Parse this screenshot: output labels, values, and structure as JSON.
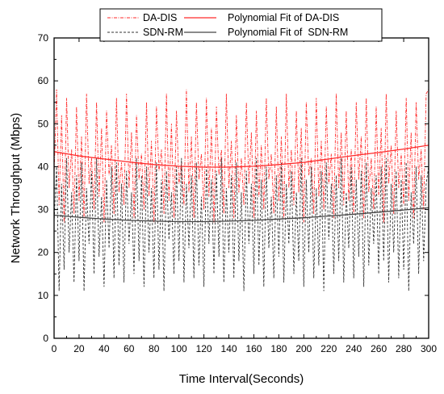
{
  "chart_data": {
    "type": "line",
    "title": "",
    "xlabel": "Time Interval(Seconds)",
    "ylabel": "Network Throughput (Mbps)",
    "xlim": [
      0,
      300
    ],
    "ylim": [
      0,
      70
    ],
    "xticks": [
      0,
      20,
      40,
      60,
      80,
      100,
      120,
      140,
      160,
      180,
      200,
      220,
      240,
      260,
      280,
      300
    ],
    "yticks": [
      0,
      10,
      20,
      30,
      40,
      50,
      60,
      70
    ],
    "grid": false,
    "legend_position": "top",
    "series": [
      {
        "name": "DA-DIS",
        "kind": "raw",
        "line_style": "dash-dot",
        "color": "#ff2a2a",
        "x": [
          0,
          2,
          4,
          6,
          8,
          10,
          12,
          14,
          16,
          18,
          20,
          22,
          24,
          26,
          28,
          30,
          32,
          34,
          36,
          38,
          40,
          42,
          44,
          46,
          48,
          50,
          52,
          54,
          56,
          58,
          60,
          62,
          64,
          66,
          68,
          70,
          72,
          74,
          76,
          78,
          80,
          82,
          84,
          86,
          88,
          90,
          92,
          94,
          96,
          98,
          100,
          102,
          104,
          106,
          108,
          110,
          112,
          114,
          116,
          118,
          120,
          122,
          124,
          126,
          128,
          130,
          132,
          134,
          136,
          138,
          140,
          142,
          144,
          146,
          148,
          150,
          152,
          154,
          156,
          158,
          160,
          162,
          164,
          166,
          168,
          170,
          172,
          174,
          176,
          178,
          180,
          182,
          184,
          186,
          188,
          190,
          192,
          194,
          196,
          198,
          200,
          202,
          204,
          206,
          208,
          210,
          212,
          214,
          216,
          218,
          220,
          222,
          224,
          226,
          228,
          230,
          232,
          234,
          236,
          238,
          240,
          242,
          244,
          246,
          248,
          250,
          252,
          254,
          256,
          258,
          260,
          262,
          264,
          266,
          268,
          270,
          272,
          274,
          276,
          278,
          280,
          282,
          284,
          286,
          288,
          290,
          292,
          294,
          296,
          298,
          300
        ],
        "y": [
          38,
          58,
          31,
          52,
          27,
          56,
          35,
          44,
          29,
          54,
          32,
          47,
          28,
          57,
          36,
          42,
          30,
          55,
          33,
          49,
          27,
          53,
          38,
          45,
          29,
          56,
          34,
          41,
          31,
          57,
          35,
          48,
          28,
          52,
          37,
          43,
          30,
          55,
          33,
          46,
          27,
          54,
          39,
          44,
          29,
          57,
          32,
          50,
          28,
          53,
          36,
          41,
          31,
          58,
          34,
          47,
          28,
          55,
          37,
          43,
          30,
          56,
          33,
          49,
          27,
          54,
          38,
          44,
          29,
          57,
          35,
          46,
          28,
          52,
          34,
          42,
          31,
          55,
          36,
          48,
          28,
          53,
          33,
          45,
          30,
          56,
          37,
          43,
          29,
          54,
          32,
          47,
          28,
          57,
          35,
          44,
          31,
          53,
          34,
          49,
          27,
          55,
          38,
          42,
          29,
          56,
          33,
          46,
          30,
          54,
          36,
          43,
          28,
          57,
          35,
          48,
          31,
          53,
          32,
          44,
          29,
          55,
          37,
          47,
          28,
          56,
          34,
          42,
          30,
          54,
          33,
          49,
          27,
          57,
          36,
          45,
          29,
          53,
          35,
          43,
          31,
          56,
          32,
          48,
          28,
          55,
          37,
          44,
          30,
          57,
          58
        ]
      },
      {
        "name": "SDN-RM",
        "kind": "raw",
        "line_style": "dash",
        "color": "#333333",
        "x": [
          0,
          2,
          4,
          6,
          8,
          10,
          12,
          14,
          16,
          18,
          20,
          22,
          24,
          26,
          28,
          30,
          32,
          34,
          36,
          38,
          40,
          42,
          44,
          46,
          48,
          50,
          52,
          54,
          56,
          58,
          60,
          62,
          64,
          66,
          68,
          70,
          72,
          74,
          76,
          78,
          80,
          82,
          84,
          86,
          88,
          90,
          92,
          94,
          96,
          98,
          100,
          102,
          104,
          106,
          108,
          110,
          112,
          114,
          116,
          118,
          120,
          122,
          124,
          126,
          128,
          130,
          132,
          134,
          136,
          138,
          140,
          142,
          144,
          146,
          148,
          150,
          152,
          154,
          156,
          158,
          160,
          162,
          164,
          166,
          168,
          170,
          172,
          174,
          176,
          178,
          180,
          182,
          184,
          186,
          188,
          190,
          192,
          194,
          196,
          198,
          200,
          202,
          204,
          206,
          208,
          210,
          212,
          214,
          216,
          218,
          220,
          222,
          224,
          226,
          228,
          230,
          232,
          234,
          236,
          238,
          240,
          242,
          244,
          246,
          248,
          250,
          252,
          254,
          256,
          258,
          260,
          262,
          264,
          266,
          268,
          270,
          272,
          274,
          276,
          278,
          280,
          282,
          284,
          286,
          288,
          290,
          292,
          294,
          296,
          298,
          300
        ],
        "y": [
          27,
          40,
          11,
          36,
          16,
          42,
          20,
          34,
          13,
          38,
          18,
          41,
          11,
          35,
          22,
          39,
          15,
          42,
          19,
          33,
          12,
          37,
          21,
          40,
          14,
          41,
          17,
          36,
          13,
          39,
          22,
          34,
          15,
          42,
          18,
          38,
          12,
          40,
          20,
          35,
          14,
          41,
          16,
          37,
          11,
          39,
          23,
          34,
          15,
          40,
          18,
          42,
          13,
          36,
          21,
          38,
          14,
          41,
          17,
          33,
          12,
          40,
          22,
          37,
          15,
          39,
          19,
          42,
          13,
          35,
          20,
          38,
          14,
          41,
          18,
          34,
          11,
          39,
          22,
          36,
          15,
          42,
          17,
          37,
          12,
          40,
          21,
          33,
          14,
          38,
          19,
          41,
          13,
          36,
          22,
          39,
          15,
          34,
          18,
          42,
          12,
          37,
          20,
          40,
          14,
          35,
          17,
          39,
          11,
          41,
          23,
          36,
          15,
          38,
          18,
          42,
          13,
          34,
          21,
          40,
          14,
          37,
          19,
          39,
          12,
          41,
          17,
          35,
          22,
          38,
          15,
          40,
          18,
          42,
          13,
          36,
          20,
          39,
          14,
          37,
          16,
          41,
          11,
          34,
          22,
          40,
          15,
          38,
          18,
          36,
          40
        ]
      },
      {
        "name": "Polynomial Fit of DA-DIS",
        "kind": "fit",
        "line_style": "solid",
        "color": "#ff2a2a",
        "x": [
          0,
          20,
          40,
          60,
          80,
          100,
          120,
          140,
          160,
          180,
          200,
          220,
          240,
          260,
          280,
          300
        ],
        "y": [
          43.5,
          42.5,
          41.8,
          41.1,
          40.5,
          40.1,
          39.9,
          39.9,
          40.1,
          40.5,
          41.0,
          41.8,
          42.6,
          43.3,
          44.1,
          45.0
        ]
      },
      {
        "name": "Polynomial Fit of  SDN-RM",
        "kind": "fit",
        "line_style": "solid",
        "color": "#444444",
        "x": [
          0,
          20,
          40,
          60,
          80,
          100,
          120,
          140,
          160,
          180,
          200,
          220,
          240,
          260,
          280,
          300
        ],
        "y": [
          28.7,
          28.2,
          27.8,
          27.5,
          27.3,
          27.2,
          27.2,
          27.3,
          27.5,
          27.8,
          28.1,
          28.5,
          28.9,
          29.4,
          29.9,
          30.4
        ]
      }
    ]
  }
}
